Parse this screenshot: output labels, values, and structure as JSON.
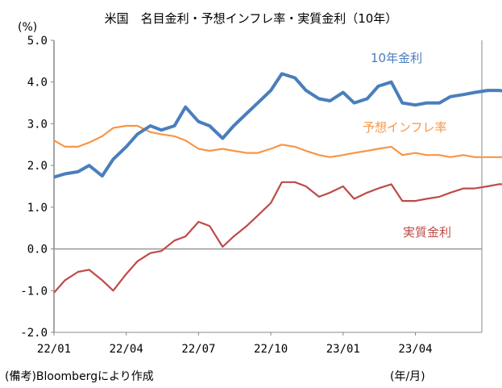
{
  "chart_data": {
    "type": "line",
    "title": "米国　名目金利・予想インフレ率・実質金利（10年）",
    "ylabel": "(%)",
    "xlabel": "(年/月)",
    "note": "(備考)Bloombergにより作成",
    "ylim": [
      -2.0,
      5.0
    ],
    "yticks": [
      "5.0",
      "4.0",
      "3.0",
      "2.0",
      "1.0",
      "0.0",
      "-1.0",
      "-2.0"
    ],
    "xticks": [
      "22/01",
      "22/04",
      "22/07",
      "22/10",
      "23/01",
      "23/04"
    ],
    "grid": false,
    "x": [
      "2022-01-01",
      "2022-01-15",
      "2022-02-01",
      "2022-02-15",
      "2022-03-01",
      "2022-03-15",
      "2022-04-01",
      "2022-04-15",
      "2022-05-01",
      "2022-05-15",
      "2022-06-01",
      "2022-06-15",
      "2022-07-01",
      "2022-07-15",
      "2022-08-01",
      "2022-08-15",
      "2022-09-01",
      "2022-09-15",
      "2022-10-01",
      "2022-10-15",
      "2022-11-01",
      "2022-11-15",
      "2022-12-01",
      "2022-12-15",
      "2023-01-01",
      "2023-01-15",
      "2023-02-01",
      "2023-02-15",
      "2023-03-01",
      "2023-03-15",
      "2023-04-01",
      "2023-04-15",
      "2023-05-01",
      "2023-05-15",
      "2023-06-01",
      "2023-06-15",
      "2023-07-01",
      "2023-07-15",
      "2023-07-25"
    ],
    "series": [
      {
        "name": "10年金利",
        "color": "#4a7ebb",
        "values": [
          1.72,
          1.8,
          1.85,
          2.0,
          1.75,
          2.15,
          2.45,
          2.75,
          2.95,
          2.85,
          2.95,
          3.4,
          3.05,
          2.95,
          2.65,
          2.95,
          3.25,
          3.5,
          3.8,
          4.2,
          4.1,
          3.8,
          3.6,
          3.55,
          3.75,
          3.5,
          3.6,
          3.9,
          4.0,
          3.5,
          3.45,
          3.5,
          3.5,
          3.65,
          3.7,
          3.75,
          3.8,
          3.8,
          3.78
        ]
      },
      {
        "name": "予想インフレ率",
        "color": "#f79646",
        "values": [
          2.6,
          2.45,
          2.45,
          2.55,
          2.7,
          2.9,
          2.95,
          2.95,
          2.8,
          2.75,
          2.7,
          2.6,
          2.4,
          2.35,
          2.4,
          2.35,
          2.3,
          2.3,
          2.4,
          2.5,
          2.45,
          2.35,
          2.25,
          2.2,
          2.25,
          2.3,
          2.35,
          2.4,
          2.45,
          2.25,
          2.3,
          2.25,
          2.25,
          2.2,
          2.25,
          2.2,
          2.2,
          2.2,
          2.2
        ]
      },
      {
        "name": "実質金利",
        "color": "#be4b48",
        "values": [
          -1.05,
          -0.75,
          -0.55,
          -0.5,
          -0.75,
          -1.0,
          -0.6,
          -0.3,
          -0.1,
          -0.05,
          0.2,
          0.3,
          0.65,
          0.55,
          0.05,
          0.3,
          0.55,
          0.8,
          1.1,
          1.6,
          1.6,
          1.5,
          1.25,
          1.35,
          1.5,
          1.2,
          1.35,
          1.45,
          1.55,
          1.15,
          1.15,
          1.2,
          1.25,
          1.35,
          1.45,
          1.45,
          1.5,
          1.55,
          1.55
        ]
      }
    ]
  }
}
